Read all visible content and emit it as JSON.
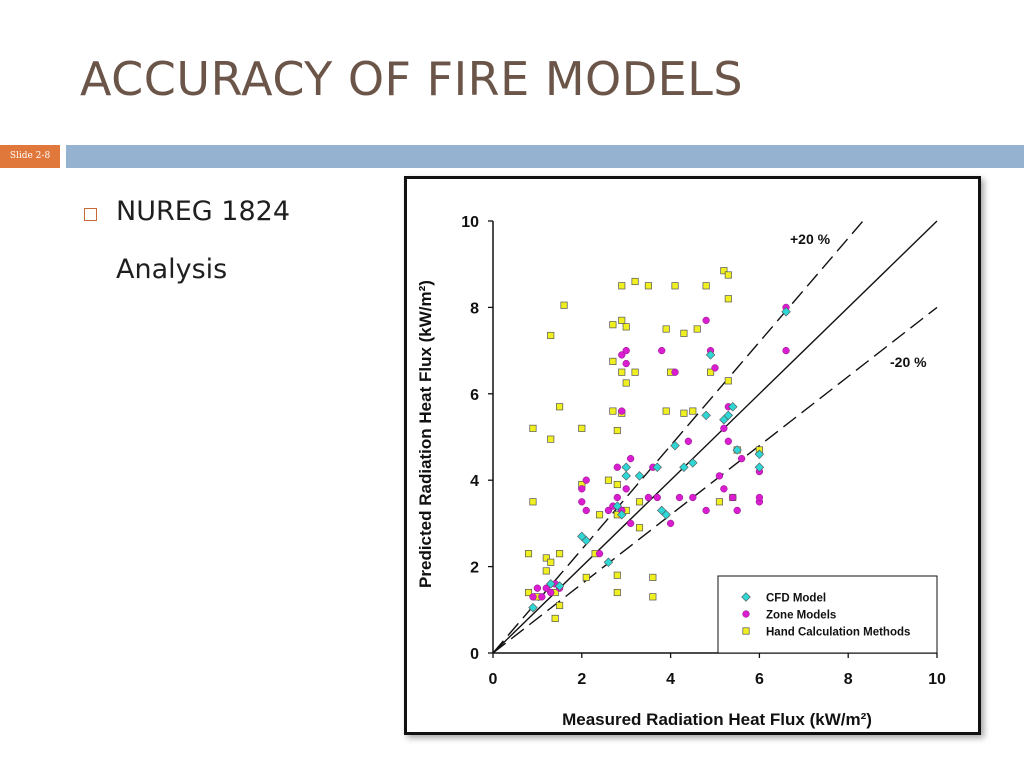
{
  "slide": {
    "title": "ACCURACY OF FIRE MODELS",
    "slide_number": "Slide 2-8",
    "bullet_line1": "NUREG 1824",
    "bullet_line2": "Analysis"
  },
  "colors": {
    "title": "#6b5548",
    "accent_orange": "#e0773b",
    "accent_bar": "#95b3d1",
    "cfd": "#2fd6d6",
    "zone": "#d91ecf",
    "hand": "#f0f020"
  },
  "chart_data": {
    "type": "scatter",
    "xlabel": "Measured Radiation Heat Flux (kW/m²)",
    "ylabel": "Predicted Radiation Heat Flux (kW/m²)",
    "xlim": [
      0,
      10
    ],
    "ylim": [
      0,
      10
    ],
    "x_ticks": [
      "0",
      "2",
      "4",
      "6",
      "8",
      "10"
    ],
    "y_ticks": [
      "0",
      "2",
      "4",
      "6",
      "8",
      "10"
    ],
    "grid": false,
    "legend_position": "bottom-right",
    "annotations": {
      "upper": "+20 %",
      "lower": "-20 %"
    },
    "reference_lines": [
      {
        "name": "equality",
        "slope": 1.0,
        "style": "solid"
      },
      {
        "name": "+20 %",
        "slope": 1.2,
        "style": "dashed"
      },
      {
        "name": "-20 %",
        "slope": 0.8,
        "style": "dashed"
      }
    ],
    "series": [
      {
        "name": "CFD Model",
        "marker": "diamond",
        "points": [
          [
            0.9,
            1.05
          ],
          [
            1.3,
            1.6
          ],
          [
            1.5,
            1.55
          ],
          [
            2.0,
            2.7
          ],
          [
            2.1,
            2.6
          ],
          [
            2.6,
            2.1
          ],
          [
            2.8,
            3.4
          ],
          [
            2.9,
            3.2
          ],
          [
            3.0,
            4.1
          ],
          [
            3.0,
            4.3
          ],
          [
            3.3,
            4.1
          ],
          [
            3.7,
            4.3
          ],
          [
            3.8,
            3.3
          ],
          [
            3.9,
            3.2
          ],
          [
            4.1,
            4.8
          ],
          [
            4.3,
            4.3
          ],
          [
            4.5,
            4.4
          ],
          [
            4.8,
            5.5
          ],
          [
            4.9,
            6.9
          ],
          [
            5.2,
            5.4
          ],
          [
            5.3,
            5.5
          ],
          [
            5.4,
            5.7
          ],
          [
            5.5,
            4.7
          ],
          [
            6.0,
            4.3
          ],
          [
            6.0,
            4.6
          ],
          [
            6.6,
            7.9
          ]
        ]
      },
      {
        "name": "Zone Models",
        "marker": "circle",
        "points": [
          [
            0.9,
            1.3
          ],
          [
            1.0,
            1.5
          ],
          [
            1.1,
            1.3
          ],
          [
            1.2,
            1.5
          ],
          [
            1.3,
            1.4
          ],
          [
            1.4,
            1.6
          ],
          [
            1.5,
            1.5
          ],
          [
            2.0,
            3.8
          ],
          [
            2.0,
            3.5
          ],
          [
            2.1,
            3.3
          ],
          [
            2.1,
            4.0
          ],
          [
            2.4,
            2.3
          ],
          [
            2.6,
            3.3
          ],
          [
            2.7,
            3.4
          ],
          [
            2.8,
            3.6
          ],
          [
            2.8,
            4.3
          ],
          [
            2.9,
            3.3
          ],
          [
            2.9,
            5.6
          ],
          [
            2.9,
            6.9
          ],
          [
            3.0,
            7.0
          ],
          [
            3.0,
            6.7
          ],
          [
            3.0,
            3.8
          ],
          [
            3.1,
            4.5
          ],
          [
            3.1,
            3.0
          ],
          [
            3.5,
            3.6
          ],
          [
            3.6,
            4.3
          ],
          [
            3.7,
            3.6
          ],
          [
            3.8,
            7.0
          ],
          [
            4.0,
            3.0
          ],
          [
            4.1,
            6.5
          ],
          [
            4.2,
            3.6
          ],
          [
            4.4,
            4.9
          ],
          [
            4.5,
            3.6
          ],
          [
            4.8,
            3.3
          ],
          [
            4.8,
            7.7
          ],
          [
            4.9,
            7.0
          ],
          [
            5.0,
            6.6
          ],
          [
            5.1,
            4.1
          ],
          [
            5.2,
            5.2
          ],
          [
            5.2,
            3.8
          ],
          [
            5.3,
            5.7
          ],
          [
            5.3,
            4.9
          ],
          [
            5.4,
            3.6
          ],
          [
            5.5,
            3.3
          ],
          [
            5.6,
            4.5
          ],
          [
            6.0,
            3.5
          ],
          [
            6.0,
            3.6
          ],
          [
            6.0,
            4.2
          ],
          [
            6.6,
            7.0
          ],
          [
            6.6,
            8.0
          ]
        ]
      },
      {
        "name": "Hand Calculation Methods",
        "marker": "square",
        "points": [
          [
            0.8,
            2.3
          ],
          [
            0.8,
            1.4
          ],
          [
            0.9,
            3.5
          ],
          [
            0.9,
            5.2
          ],
          [
            1.0,
            1.3
          ],
          [
            1.2,
            2.2
          ],
          [
            1.2,
            1.9
          ],
          [
            1.3,
            2.1
          ],
          [
            1.3,
            4.95
          ],
          [
            1.3,
            7.35
          ],
          [
            1.4,
            0.8
          ],
          [
            1.4,
            1.4
          ],
          [
            1.5,
            2.3
          ],
          [
            1.5,
            1.1
          ],
          [
            1.5,
            5.7
          ],
          [
            1.6,
            8.05
          ],
          [
            2.0,
            5.2
          ],
          [
            2.0,
            3.9
          ],
          [
            2.1,
            1.75
          ],
          [
            2.3,
            2.3
          ],
          [
            2.4,
            3.2
          ],
          [
            2.6,
            4.0
          ],
          [
            2.7,
            7.6
          ],
          [
            2.7,
            6.75
          ],
          [
            2.7,
            5.6
          ],
          [
            2.8,
            5.15
          ],
          [
            2.8,
            3.9
          ],
          [
            2.8,
            3.2
          ],
          [
            2.8,
            1.4
          ],
          [
            2.8,
            1.8
          ],
          [
            2.9,
            7.7
          ],
          [
            2.9,
            8.5
          ],
          [
            2.9,
            6.5
          ],
          [
            2.9,
            5.55
          ],
          [
            3.0,
            7.55
          ],
          [
            3.0,
            6.25
          ],
          [
            3.0,
            3.3
          ],
          [
            3.2,
            8.6
          ],
          [
            3.2,
            6.5
          ],
          [
            3.3,
            3.5
          ],
          [
            3.3,
            2.9
          ],
          [
            3.5,
            8.5
          ],
          [
            3.6,
            1.75
          ],
          [
            3.6,
            1.3
          ],
          [
            3.9,
            7.5
          ],
          [
            3.9,
            5.6
          ],
          [
            4.0,
            6.5
          ],
          [
            4.1,
            8.5
          ],
          [
            4.3,
            7.4
          ],
          [
            4.3,
            5.55
          ],
          [
            4.5,
            5.6
          ],
          [
            4.6,
            7.5
          ],
          [
            4.8,
            8.5
          ],
          [
            4.9,
            6.5
          ],
          [
            5.1,
            3.5
          ],
          [
            5.2,
            8.85
          ],
          [
            5.3,
            8.75
          ],
          [
            5.3,
            8.2
          ],
          [
            5.3,
            6.3
          ],
          [
            5.4,
            3.6
          ],
          [
            5.5,
            4.7
          ],
          [
            6.0,
            4.7
          ]
        ]
      }
    ]
  }
}
